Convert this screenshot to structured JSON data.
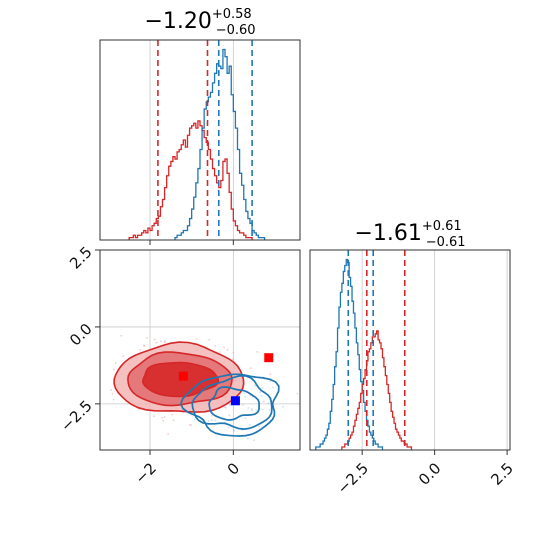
{
  "colors": {
    "red": "#d62728",
    "blue": "#1f77b4",
    "grid": "#c8c8c8",
    "frame": "#333333"
  },
  "chart_data": {
    "type": "corner",
    "panels": [
      {
        "id": "hist-x",
        "type": "histogram",
        "title": {
          "main": "−1.20",
          "sup": "+0.58",
          "sub": "−0.60"
        },
        "xlim": [
          -3.2,
          1.6
        ],
        "x_ticks": [
          -2,
          0
        ],
        "grid": true,
        "series": [
          {
            "name": "",
            "color": "red",
            "bin_start": -2.5,
            "bin_width": 0.05,
            "counts": [
              1,
              1,
              2,
              1,
              2,
              2,
              3,
              4,
              3,
              5,
              4,
              6,
              7,
              9,
              10,
              14,
              17,
              22,
              27,
              31,
              33,
              35,
              34,
              37,
              38,
              40,
              42,
              39,
              44,
              47,
              48,
              49,
              47,
              50,
              48,
              46,
              43,
              41,
              38,
              34,
              30,
              27,
              24,
              22,
              25,
              33,
              34,
              28,
              20,
              13,
              8,
              6,
              4,
              3,
              3,
              2,
              1,
              1,
              1
            ]
          },
          {
            "name": "",
            "color": "blue",
            "bin_start": -1.4,
            "bin_width": 0.05,
            "counts": [
              1,
              2,
              2,
              3,
              4,
              4,
              6,
              9,
              13,
              18,
              24,
              30,
              38,
              47,
              55,
              58,
              60,
              62,
              66,
              70,
              74,
              73,
              72,
              80,
              77,
              70,
              73,
              61,
              54,
              47,
              38,
              28,
              23,
              17,
              12,
              9,
              7,
              4,
              3,
              2,
              1,
              1,
              1
            ]
          }
        ],
        "quantile_lines": [
          {
            "color": "red",
            "values": [
              -1.81,
              -0.62
            ]
          },
          {
            "color": "blue",
            "values": [
              -0.35,
              0.45
            ]
          }
        ]
      },
      {
        "id": "hist-y",
        "type": "histogram",
        "title": {
          "main": "−1.61",
          "sup": "+0.61",
          "sub": "−0.61"
        },
        "xlim": [
          -4.3,
          2.6
        ],
        "x_ticks": [
          -2.5,
          0.0,
          2.5
        ],
        "x_ticklabels": [
          "−2.5",
          "0.0",
          "2.5"
        ],
        "grid": true,
        "series": [
          {
            "name": "",
            "color": "blue",
            "bin_start": -4.1,
            "bin_width": 0.05,
            "counts": [
              1,
              1,
              1,
              2,
              2,
              3,
              4,
              5,
              7,
              9,
              13,
              17,
              22,
              28,
              33,
              41,
              48,
              53,
              56,
              60,
              62,
              64,
              63,
              58,
              55,
              50,
              46,
              41,
              36,
              32,
              27,
              23,
              20,
              16,
              13,
              10,
              8,
              6,
              5,
              4,
              3,
              2,
              2,
              1,
              1,
              1
            ]
          },
          {
            "name": "",
            "color": "red",
            "bin_start": -3.2,
            "bin_width": 0.05,
            "counts": [
              1,
              1,
              2,
              2,
              3,
              4,
              5,
              6,
              8,
              10,
              12,
              14,
              16,
              19,
              22,
              24,
              27,
              30,
              33,
              34,
              36,
              38,
              38,
              39,
              40,
              37,
              36,
              34,
              31,
              28,
              25,
              22,
              19,
              16,
              13,
              11,
              9,
              7,
              6,
              5,
              4,
              3,
              3,
              2,
              2,
              1,
              1,
              1
            ]
          }
        ],
        "quantile_lines": [
          {
            "color": "blue",
            "values": [
              -2.98,
              -2.12
            ]
          },
          {
            "color": "red",
            "values": [
              -2.34,
              -1.03
            ]
          }
        ]
      },
      {
        "id": "joint",
        "type": "contour",
        "xlim": [
          -3.2,
          1.6
        ],
        "ylim": [
          -4.0,
          2.5
        ],
        "x_ticks": [
          -2,
          0
        ],
        "y_ticks": [
          2.5,
          0.0,
          -2.5
        ],
        "x_ticklabels": [
          "−2",
          "0"
        ],
        "y_ticklabels": [
          "2.5",
          "0.0",
          "−2.5"
        ],
        "grid": true,
        "red_contour": {
          "center": [
            -1.3,
            -1.7
          ],
          "levels": [
            [
              0.9,
              0.55
            ],
            [
              1.25,
              0.85
            ],
            [
              1.55,
              1.12
            ]
          ]
        },
        "blue_contour": {
          "center": [
            0.0,
            -2.5
          ],
          "levels": [
            [
              0.6,
              0.5
            ],
            [
              0.95,
              0.8
            ],
            [
              1.1,
              1.0
            ]
          ]
        },
        "markers": [
          {
            "color": "red",
            "x": -1.2,
            "y": -1.6
          },
          {
            "color": "red",
            "x": 0.85,
            "y": -1.0
          },
          {
            "color": "blue",
            "x": 0.05,
            "y": -2.4
          }
        ]
      }
    ]
  }
}
